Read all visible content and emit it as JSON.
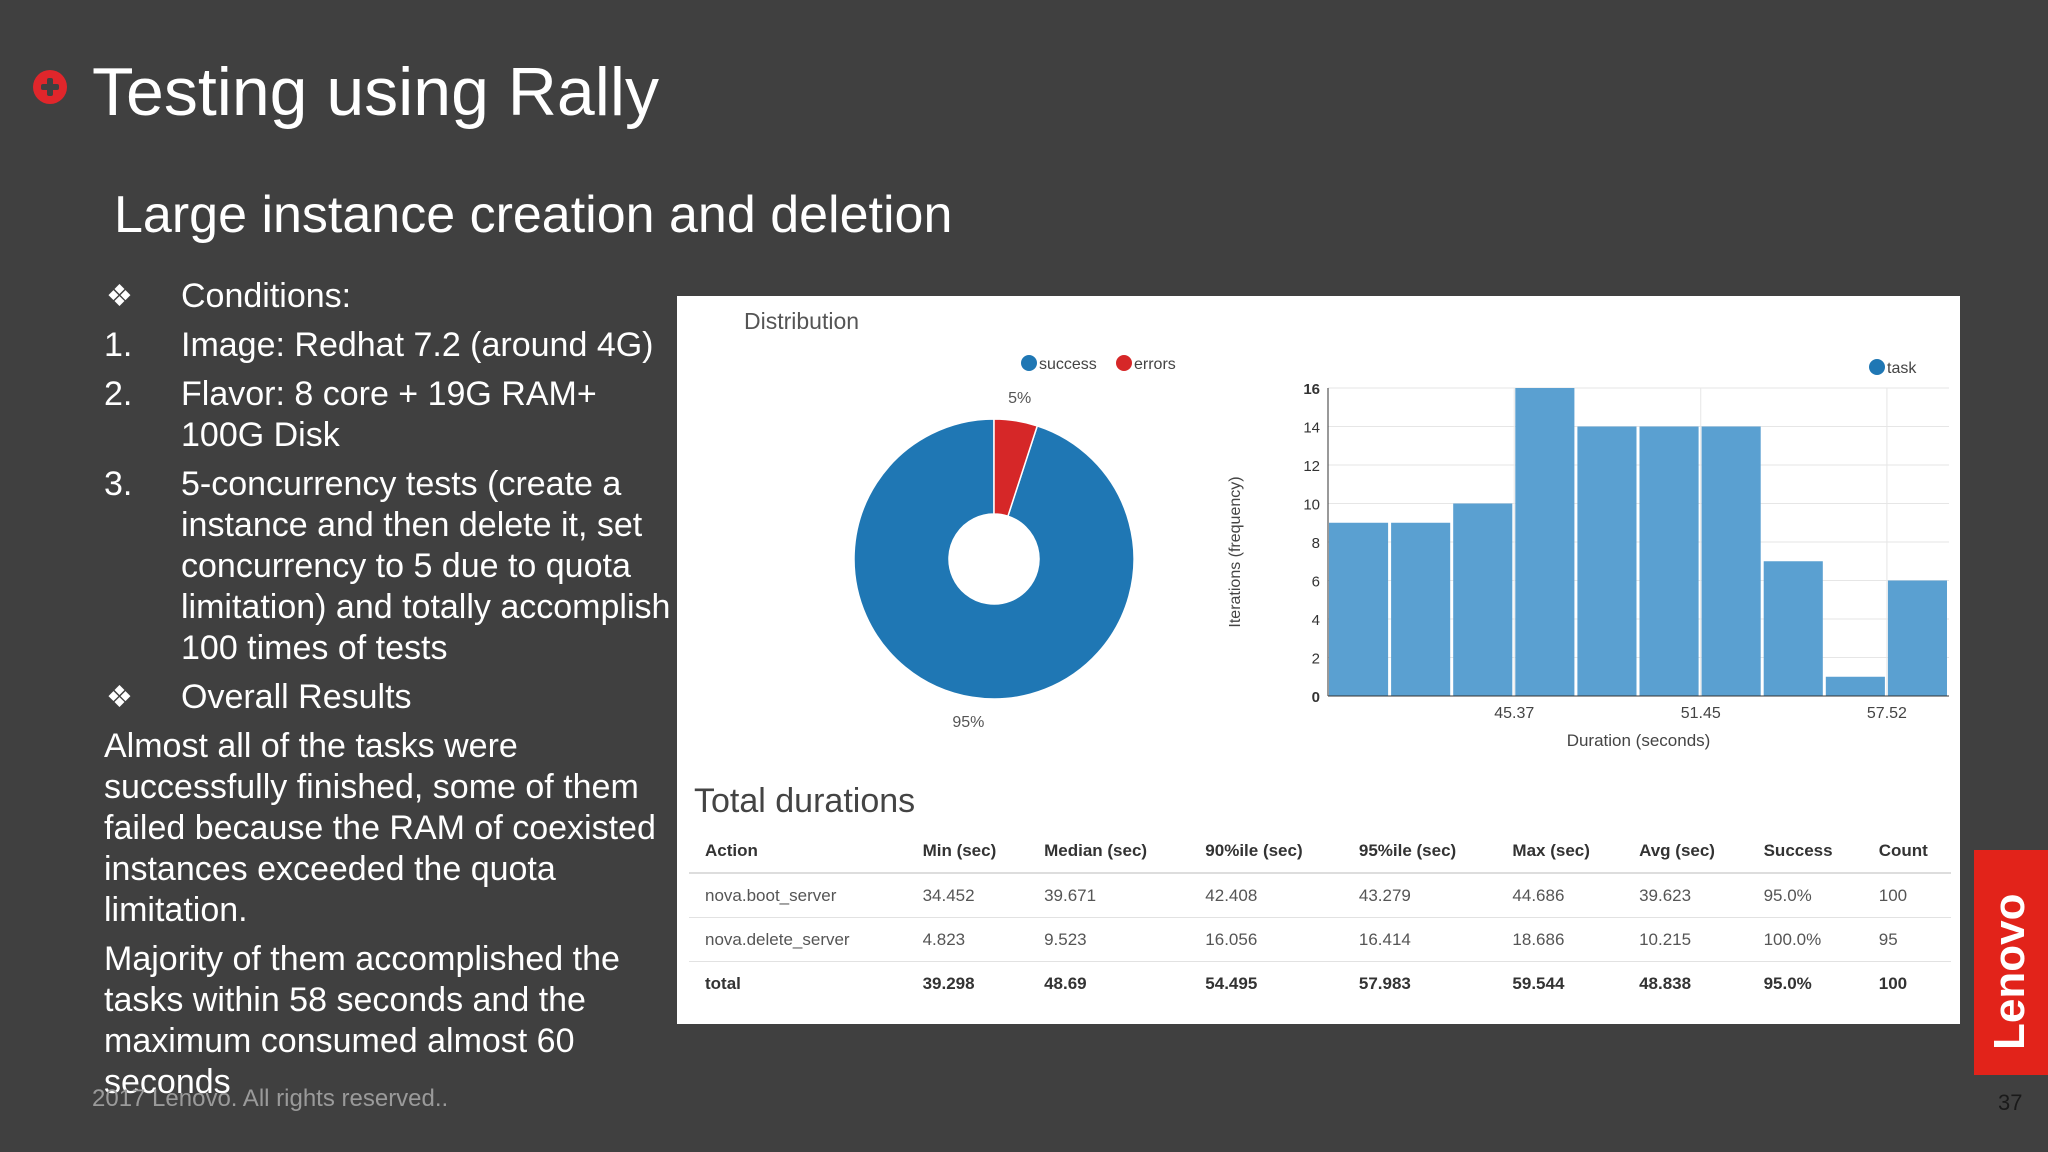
{
  "slide": {
    "title": "Testing using Rally",
    "subtitle": "Large instance creation and deletion",
    "footer": "2017 Lenovo. All rights reserved..",
    "page_number": "37",
    "logo_text": "Lenovo",
    "accent_color": "#e0262b",
    "background_color": "#404040"
  },
  "content": {
    "items": [
      {
        "marker": "❖",
        "text": "Conditions:"
      },
      {
        "marker": "1.",
        "text": "Image: Redhat 7.2 (around 4G)"
      },
      {
        "marker": "2.",
        "text": "Flavor: 8 core + 19G RAM+ 100G Disk"
      },
      {
        "marker": "3.",
        "text": "5-concurrency tests (create a instance and then delete it, set concurrency to 5 due to quota limitation) and totally accomplish 100 times of tests"
      },
      {
        "marker": "❖",
        "text": "Overall Results"
      }
    ],
    "paragraphs": [
      "Almost all of the tasks were successfully finished, some of them failed because the RAM of coexisted instances exceeded the quota limitation.",
      "Majority of them accomplished the tasks within 58 seconds and the maximum consumed almost 60 seconds"
    ]
  },
  "distribution": {
    "title": "Distribution"
  },
  "durations": {
    "title": "Total durations",
    "columns": [
      "Action",
      "Min (sec)",
      "Median (sec)",
      "90%ile (sec)",
      "95%ile (sec)",
      "Max (sec)",
      "Avg (sec)",
      "Success",
      "Count"
    ],
    "rows": [
      [
        "nova.boot_server",
        "34.452",
        "39.671",
        "42.408",
        "43.279",
        "44.686",
        "39.623",
        "95.0%",
        "100"
      ],
      [
        "nova.delete_server",
        "4.823",
        "9.523",
        "16.056",
        "16.414",
        "18.686",
        "10.215",
        "100.0%",
        "95"
      ],
      [
        "total",
        "39.298",
        "48.69",
        "54.495",
        "57.983",
        "59.544",
        "48.838",
        "95.0%",
        "100"
      ]
    ]
  },
  "chart_data": [
    {
      "type": "pie",
      "variant": "donut",
      "legend": [
        "success",
        "errors"
      ],
      "legend_placement": "top",
      "slices": [
        {
          "name": "success",
          "value": 95,
          "label": "95%",
          "color": "#1f77b4"
        },
        {
          "name": "errors",
          "value": 5,
          "label": "5%",
          "color": "#d62728"
        }
      ]
    },
    {
      "type": "bar",
      "variant": "histogram",
      "legend": [
        "task"
      ],
      "legend_placement": "top-right",
      "xlabel": "Duration (seconds)",
      "ylabel": "Iterations (frequency)",
      "ylim": [
        0,
        16
      ],
      "yticks": [
        0,
        2,
        4,
        6,
        8,
        10,
        12,
        14,
        16
      ],
      "xticks": [
        {
          "value": 45.37,
          "label": "45.37"
        },
        {
          "value": 51.45,
          "label": "51.45"
        },
        {
          "value": 57.52,
          "label": "57.52"
        }
      ],
      "xlim": [
        39.298,
        59.544
      ],
      "values": [
        9,
        9,
        10,
        16,
        14,
        14,
        14,
        7,
        1,
        6
      ],
      "grid": true,
      "color": "#5aa0d1"
    }
  ]
}
